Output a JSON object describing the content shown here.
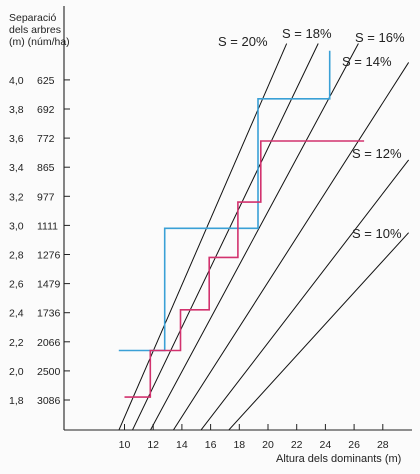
{
  "chart_data": {
    "type": "line",
    "title": "",
    "ylabel": [
      "Separació",
      "dels arbres",
      "(m) (núm/ha)"
    ],
    "xlabel": "Altura dels dominants (m)",
    "xlim": [
      4,
      28.5
    ],
    "ylim": [
      1.5,
      4.2
    ],
    "x_ticks": [
      10,
      12,
      14,
      16,
      18,
      20,
      22,
      24,
      26,
      28
    ],
    "y_ticks": [
      {
        "spacing": "1,8",
        "density": "3086",
        "value": 1.8
      },
      {
        "spacing": "2,0",
        "density": "2500",
        "value": 2.0
      },
      {
        "spacing": "2,2",
        "density": "2066",
        "value": 2.2
      },
      {
        "spacing": "2,4",
        "density": "1736",
        "value": 2.4
      },
      {
        "spacing": "2,6",
        "density": "1479",
        "value": 2.6
      },
      {
        "spacing": "2,8",
        "density": "1276",
        "value": 2.8
      },
      {
        "spacing": "3,0",
        "density": "1111",
        "value": 3.0
      },
      {
        "spacing": "3,2",
        "density": "977",
        "value": 3.2
      },
      {
        "spacing": "3,4",
        "density": "865",
        "value": 3.4
      },
      {
        "spacing": "3,6",
        "density": "772",
        "value": 3.6
      },
      {
        "spacing": "3,8",
        "density": "692",
        "value": 3.8
      },
      {
        "spacing": "4,0",
        "density": "625",
        "value": 4.0
      }
    ],
    "reference_lines": [
      {
        "name": "S = 20%",
        "x_start": 9.2,
        "y_start": 1.5,
        "x_end": 21.3,
        "y_end": 4.25
      },
      {
        "name": "S = 18%",
        "x_start": 10.1,
        "y_start": 1.5,
        "x_end": 23.5,
        "y_end": 4.25
      },
      {
        "name": "S = 16%",
        "x_start": 11.3,
        "y_start": 1.5,
        "x_end": 26.3,
        "y_end": 4.25
      },
      {
        "name": "S = 14%",
        "x_start": 12.8,
        "y_start": 1.5,
        "x_end": 29.8,
        "y_end": 4.12
      },
      {
        "name": "S = 12%",
        "x_start": 14.6,
        "y_start": 1.5,
        "x_end": 29.8,
        "y_end": 3.45
      },
      {
        "name": "S = 10%",
        "x_start": 16.4,
        "y_start": 1.5,
        "x_end": 29.8,
        "y_end": 2.95
      }
    ],
    "series": [
      {
        "color": "#3aa0d6",
        "points": [
          [
            9.6,
            2.14
          ],
          [
            12.8,
            2.14
          ],
          [
            12.8,
            2.98
          ],
          [
            19.3,
            2.98
          ],
          [
            19.3,
            3.87
          ],
          [
            24.3,
            3.87
          ],
          [
            24.3,
            4.2
          ]
        ]
      },
      {
        "color": "#d2326e",
        "points": [
          [
            10.0,
            1.82
          ],
          [
            11.8,
            1.82
          ],
          [
            11.8,
            2.14
          ],
          [
            13.9,
            2.14
          ],
          [
            13.9,
            2.42
          ],
          [
            15.9,
            2.42
          ],
          [
            15.9,
            2.78
          ],
          [
            17.9,
            2.78
          ],
          [
            17.9,
            3.16
          ],
          [
            19.5,
            3.16
          ],
          [
            19.5,
            3.58
          ],
          [
            26.7,
            3.58
          ]
        ]
      }
    ]
  }
}
